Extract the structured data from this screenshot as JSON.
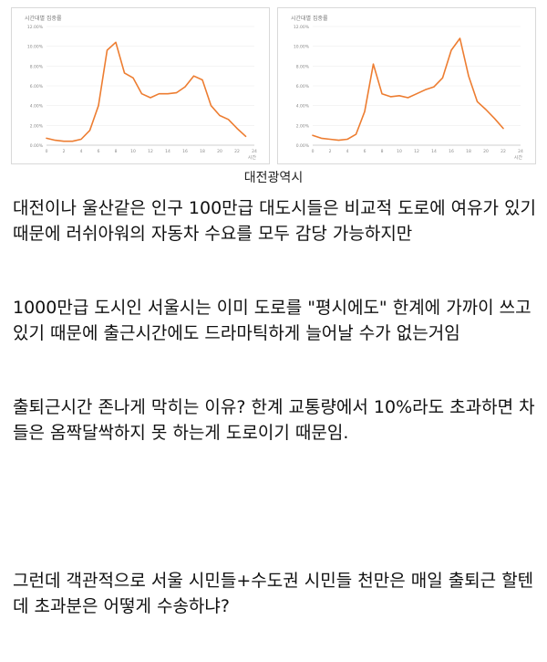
{
  "chart_data": [
    {
      "type": "line",
      "title": "시간대별 집중률",
      "xlabel": "시간",
      "ylabel": "",
      "x": [
        0,
        1,
        2,
        3,
        4,
        5,
        6,
        7,
        8,
        9,
        10,
        11,
        12,
        13,
        14,
        15,
        16,
        17,
        18,
        19,
        20,
        21,
        22,
        23,
        24
      ],
      "x_ticks": [
        0,
        2,
        4,
        6,
        8,
        10,
        12,
        14,
        16,
        18,
        20,
        22,
        24
      ],
      "y_ticks": [
        "0.00%",
        "2.00%",
        "4.00%",
        "6.00%",
        "8.00%",
        "10.00%",
        "12.00%"
      ],
      "ylim": [
        0,
        12
      ],
      "series": [
        {
          "values": [
            0.7,
            0.5,
            0.4,
            0.4,
            0.6,
            1.5,
            4.0,
            9.6,
            10.4,
            7.3,
            6.8,
            5.2,
            4.8,
            5.2,
            5.2,
            5.3,
            5.9,
            7.0,
            6.6,
            4.0,
            3.0,
            2.6,
            1.7,
            0.9,
            null
          ]
        }
      ],
      "color": "#ed7d31"
    },
    {
      "type": "line",
      "title": "시간대별 집중률",
      "xlabel": "시간",
      "ylabel": "",
      "x": [
        0,
        1,
        2,
        3,
        4,
        5,
        6,
        7,
        8,
        9,
        10,
        11,
        12,
        13,
        14,
        15,
        16,
        17,
        18,
        19,
        20,
        21,
        22,
        23,
        24
      ],
      "x_ticks": [
        0,
        2,
        4,
        6,
        8,
        10,
        12,
        14,
        16,
        18,
        20,
        22,
        24
      ],
      "y_ticks": [
        "0.00%",
        "2.00%",
        "4.00%",
        "6.00%",
        "8.00%",
        "10.00%",
        "12.00%"
      ],
      "ylim": [
        0,
        12
      ],
      "series": [
        {
          "values": [
            1.0,
            0.7,
            0.6,
            0.5,
            0.6,
            1.1,
            3.4,
            8.2,
            5.2,
            4.9,
            5.0,
            4.8,
            5.2,
            5.6,
            5.9,
            6.8,
            9.6,
            10.8,
            7.0,
            4.4,
            3.6,
            2.7,
            1.7,
            null,
            null
          ]
        }
      ],
      "color": "#ed7d31"
    }
  ],
  "caption": "대전광역시",
  "paragraphs": [
    "대전이나 울산같은 인구 100만급 대도시들은 비교적 도로에 여유가 있기 때문에 러쉬아워의 자동차 수요를 모두 감당 가능하지만",
    "1000만급 도시인 서울시는 이미 도로를 \"평시에도\" 한계에 가까이 쓰고 있기 때문에 출근시간에도 드라마틱하게 늘어날 수가 없는거임",
    "출퇴근시간 존나게 막히는 이유? 한계 교통량에서 10%라도 초과하면 차들은 옴짝달싹하지 못 하는게 도로이기 때문임.",
    "그런데 객관적으로 서울 시민들+수도권 시민들 천만은 매일 출퇴근 할텐데 초과분은 어떻게 수송하냐?"
  ]
}
